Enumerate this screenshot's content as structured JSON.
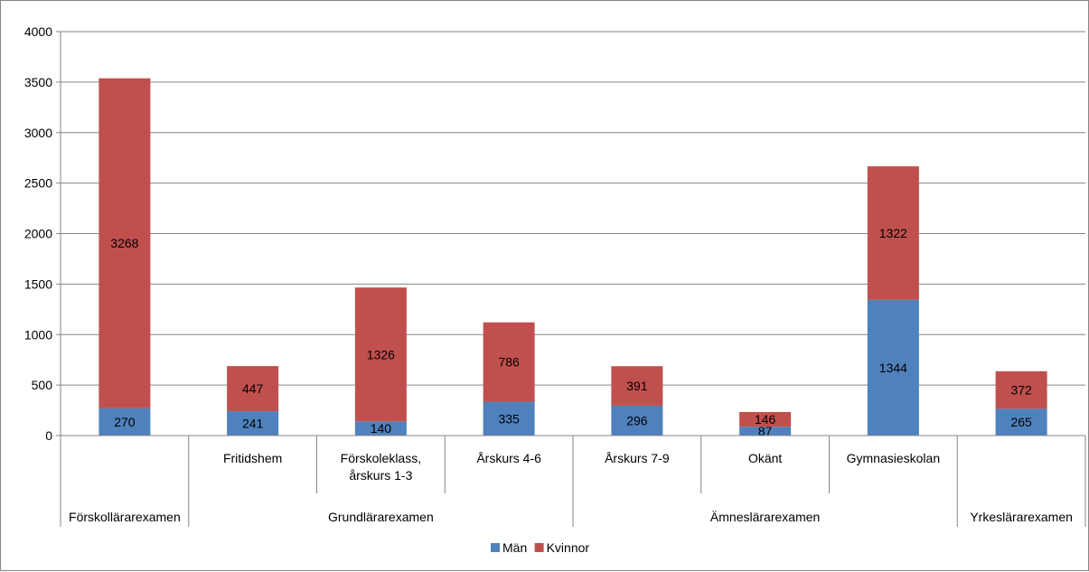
{
  "chart_data": {
    "type": "bar",
    "stacked": true,
    "categories": [
      "",
      "Fritidshem",
      "Förskoleklass, årskurs 1-3",
      "Årskurs 4-6",
      "Årskurs 7-9",
      "Okänt",
      "Gymnasieskolan",
      ""
    ],
    "groups": [
      {
        "label": "Förskollärarexamen",
        "span": 1
      },
      {
        "label": "Grundlärarexamen",
        "span": 3
      },
      {
        "label": "Ämneslärarexamen",
        "span": 3
      },
      {
        "label": "Yrkeslärarexamen",
        "span": 1
      }
    ],
    "series": [
      {
        "name": "Män",
        "color": "#4f81bd",
        "values": [
          270,
          241,
          140,
          335,
          296,
          87,
          1344,
          265
        ]
      },
      {
        "name": "Kvinnor",
        "color": "#c0504d",
        "values": [
          3268,
          447,
          1326,
          786,
          391,
          146,
          1322,
          372
        ]
      }
    ],
    "ylim": [
      0,
      4000
    ],
    "yticks": [
      0,
      500,
      1000,
      1500,
      2000,
      2500,
      3000,
      3500,
      4000
    ],
    "grid": true,
    "legend_position": "bottom"
  }
}
